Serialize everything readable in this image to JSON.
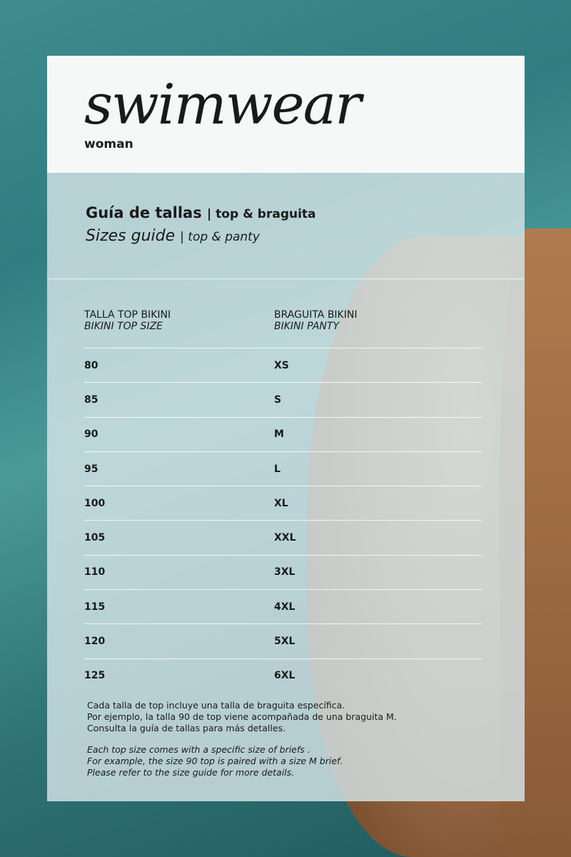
{
  "brand": {
    "title": "swimwear",
    "subtitle": "woman"
  },
  "heading": {
    "es": "Guía de tallas",
    "es_suffix": "| top & braguita",
    "en": "Sizes guide",
    "en_suffix": "| top & panty"
  },
  "table": {
    "headers": [
      {
        "es": "TALLA TOP BIKINI",
        "en": "BIKINI TOP SIZE"
      },
      {
        "es": "BRAGUITA BIKINI",
        "en": "BIKINI PANTY"
      }
    ],
    "rows": [
      [
        "80",
        "XS"
      ],
      [
        "85",
        "S"
      ],
      [
        "90",
        "M"
      ],
      [
        "95",
        "L"
      ],
      [
        "100",
        "XL"
      ],
      [
        "105",
        "XXL"
      ],
      [
        "110",
        "3XL"
      ],
      [
        "115",
        "4XL"
      ],
      [
        "120",
        "5XL"
      ],
      [
        "125",
        "6XL"
      ]
    ]
  },
  "notes": {
    "es": [
      "Cada talla de top incluye una talla de braguita específica.",
      "Por ejemplo, la talla 90 de top viene acompañada de una braguita M.",
      "Consulta la guía de tallas para más detalles."
    ],
    "en": [
      "Each top size comes with a specific size of briefs .",
      "For example, the size 90 top is paired with a size M brief.",
      "Please refer to the size guide for more details."
    ]
  }
}
